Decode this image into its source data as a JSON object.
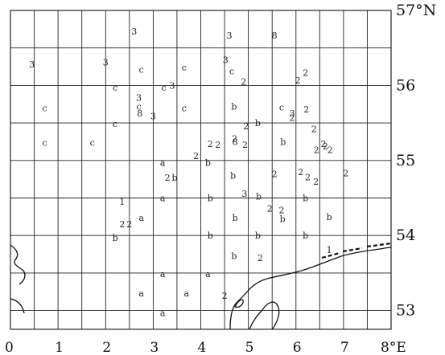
{
  "map": {
    "lat_labels": [
      {
        "lat": 57,
        "text": "57°N"
      },
      {
        "lat": 56,
        "text": "56"
      },
      {
        "lat": 55,
        "text": "55"
      },
      {
        "lat": 54,
        "text": "54"
      },
      {
        "lat": 53,
        "text": "53"
      }
    ],
    "lon_labels": [
      {
        "lon": 0,
        "text": "0"
      },
      {
        "lon": 1,
        "text": "1"
      },
      {
        "lon": 2,
        "text": "2"
      },
      {
        "lon": 3,
        "text": "3"
      },
      {
        "lon": 4,
        "text": "4"
      },
      {
        "lon": 5,
        "text": "5"
      },
      {
        "lon": 6,
        "text": "6"
      },
      {
        "lon": 7,
        "text": "7"
      },
      {
        "lon": 8,
        "text": "8°E"
      }
    ],
    "cell_size_deg": {
      "lon": 0.5,
      "lat": 0.5
    },
    "lon_range": [
      0,
      8
    ],
    "lat_range": [
      52.75,
      57
    ],
    "markers": [
      {
        "t": "3",
        "lon": 2.6,
        "lat": 56.71
      },
      {
        "t": "3",
        "lon": 0.45,
        "lat": 56.27
      },
      {
        "t": "3",
        "lon": 2.0,
        "lat": 56.3
      },
      {
        "t": "c",
        "lon": 2.75,
        "lat": 56.2
      },
      {
        "t": "c",
        "lon": 3.65,
        "lat": 56.23
      },
      {
        "t": "3",
        "lon": 4.6,
        "lat": 56.66
      },
      {
        "t": "8",
        "lon": 5.55,
        "lat": 56.66
      },
      {
        "t": "3",
        "lon": 4.52,
        "lat": 56.33
      },
      {
        "t": "c",
        "lon": 4.65,
        "lat": 56.18
      },
      {
        "t": "2",
        "lon": 6.2,
        "lat": 56.16
      },
      {
        "t": "2",
        "lon": 6.04,
        "lat": 56.06
      },
      {
        "t": "2",
        "lon": 4.9,
        "lat": 56.04
      },
      {
        "t": "c",
        "lon": 2.2,
        "lat": 55.96
      },
      {
        "t": "3",
        "lon": 3.4,
        "lat": 55.99
      },
      {
        "t": "c",
        "lon": 3.22,
        "lat": 55.96
      },
      {
        "t": "3",
        "lon": 2.7,
        "lat": 55.83
      },
      {
        "t": "c",
        "lon": 2.7,
        "lat": 55.71
      },
      {
        "t": "8",
        "lon": 2.72,
        "lat": 55.62
      },
      {
        "t": "3",
        "lon": 3.0,
        "lat": 55.58
      },
      {
        "t": "c",
        "lon": 0.72,
        "lat": 55.69
      },
      {
        "t": "c",
        "lon": 3.65,
        "lat": 55.69
      },
      {
        "t": "b",
        "lon": 4.7,
        "lat": 55.71
      },
      {
        "t": "c",
        "lon": 5.7,
        "lat": 55.7
      },
      {
        "t": "2",
        "lon": 6.22,
        "lat": 55.67
      },
      {
        "t": "3",
        "lon": 5.92,
        "lat": 55.62
      },
      {
        "t": "2",
        "lon": 5.92,
        "lat": 55.56
      },
      {
        "t": "c",
        "lon": 2.2,
        "lat": 55.48
      },
      {
        "t": "b",
        "lon": 5.2,
        "lat": 55.49
      },
      {
        "t": "2",
        "lon": 4.95,
        "lat": 55.45
      },
      {
        "t": "2",
        "lon": 6.38,
        "lat": 55.41
      },
      {
        "t": "c",
        "lon": 0.72,
        "lat": 55.23
      },
      {
        "t": "c",
        "lon": 1.72,
        "lat": 55.23
      },
      {
        "t": "2",
        "lon": 4.2,
        "lat": 55.21
      },
      {
        "t": "2",
        "lon": 4.36,
        "lat": 55.2
      },
      {
        "t": "2",
        "lon": 4.71,
        "lat": 55.28
      },
      {
        "t": "8",
        "lon": 4.72,
        "lat": 55.24
      },
      {
        "t": "2",
        "lon": 4.93,
        "lat": 55.2
      },
      {
        "t": "b",
        "lon": 5.73,
        "lat": 55.24
      },
      {
        "t": "2",
        "lon": 6.58,
        "lat": 55.21
      },
      {
        "t": "2",
        "lon": 6.62,
        "lat": 55.18
      },
      {
        "t": "2",
        "lon": 6.43,
        "lat": 55.13
      },
      {
        "t": "2",
        "lon": 6.72,
        "lat": 55.13
      },
      {
        "t": "2",
        "lon": 3.9,
        "lat": 55.05
      },
      {
        "t": "b",
        "lon": 4.15,
        "lat": 54.96
      },
      {
        "t": "a",
        "lon": 3.2,
        "lat": 54.96
      },
      {
        "t": "2",
        "lon": 3.3,
        "lat": 54.76
      },
      {
        "t": "b",
        "lon": 3.45,
        "lat": 54.76
      },
      {
        "t": "b",
        "lon": 4.68,
        "lat": 54.79
      },
      {
        "t": "2",
        "lon": 5.55,
        "lat": 54.81
      },
      {
        "t": "2",
        "lon": 6.1,
        "lat": 54.84
      },
      {
        "t": "2",
        "lon": 6.25,
        "lat": 54.77
      },
      {
        "t": "2",
        "lon": 6.42,
        "lat": 54.71
      },
      {
        "t": "2",
        "lon": 7.05,
        "lat": 54.82
      },
      {
        "t": "3",
        "lon": 4.92,
        "lat": 54.55
      },
      {
        "t": "b",
        "lon": 5.22,
        "lat": 54.51
      },
      {
        "t": "b",
        "lon": 4.2,
        "lat": 54.49
      },
      {
        "t": "a",
        "lon": 3.2,
        "lat": 54.49
      },
      {
        "t": "b",
        "lon": 6.2,
        "lat": 54.49
      },
      {
        "t": "1",
        "lon": 2.35,
        "lat": 54.44
      },
      {
        "t": "2",
        "lon": 5.45,
        "lat": 54.35
      },
      {
        "t": "2",
        "lon": 5.7,
        "lat": 54.33
      },
      {
        "t": "b",
        "lon": 5.72,
        "lat": 54.21
      },
      {
        "t": "b",
        "lon": 4.72,
        "lat": 54.23
      },
      {
        "t": "b",
        "lon": 6.7,
        "lat": 54.24
      },
      {
        "t": "a",
        "lon": 2.75,
        "lat": 54.23
      },
      {
        "t": "2",
        "lon": 2.35,
        "lat": 54.14
      },
      {
        "t": "2",
        "lon": 2.5,
        "lat": 54.14
      },
      {
        "t": "b",
        "lon": 4.2,
        "lat": 53.99
      },
      {
        "t": "b",
        "lon": 5.2,
        "lat": 53.99
      },
      {
        "t": "b",
        "lon": 6.2,
        "lat": 53.99
      },
      {
        "t": "b",
        "lon": 2.2,
        "lat": 53.96
      },
      {
        "t": "1",
        "lon": 6.7,
        "lat": 53.8
      },
      {
        "t": "b",
        "lon": 4.7,
        "lat": 53.72
      },
      {
        "t": "2",
        "lon": 5.25,
        "lat": 53.69
      },
      {
        "t": "a",
        "lon": 3.2,
        "lat": 53.48
      },
      {
        "t": "a",
        "lon": 4.15,
        "lat": 53.48
      },
      {
        "t": "a",
        "lon": 2.75,
        "lat": 53.22
      },
      {
        "t": "a",
        "lon": 3.7,
        "lat": 53.22
      },
      {
        "t": "2",
        "lon": 4.5,
        "lat": 53.19
      },
      {
        "t": "a",
        "lon": 3.2,
        "lat": 52.96
      }
    ]
  }
}
